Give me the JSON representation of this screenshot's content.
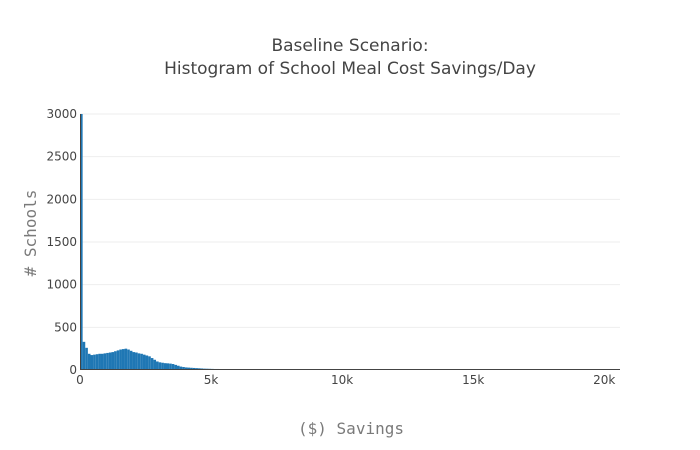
{
  "chart_data": {
    "type": "bar",
    "title_line1": "Baseline Scenario:",
    "title_line2": "Histogram of School Meal Cost Savings/Day",
    "xlabel": "($) Savings",
    "ylabel": "# Schools",
    "xlim": [
      0,
      20600
    ],
    "ylim": [
      0,
      3000
    ],
    "x_ticks": [
      {
        "value": 0,
        "label": "0"
      },
      {
        "value": 5000,
        "label": "5k"
      },
      {
        "value": 10000,
        "label": "10k"
      },
      {
        "value": 15000,
        "label": "15k"
      },
      {
        "value": 20000,
        "label": "20k"
      }
    ],
    "y_ticks": [
      {
        "value": 0,
        "label": "0"
      },
      {
        "value": 500,
        "label": "500"
      },
      {
        "value": 1000,
        "label": "1000"
      },
      {
        "value": 1500,
        "label": "1500"
      },
      {
        "value": 2000,
        "label": "2000"
      },
      {
        "value": 2500,
        "label": "2500"
      },
      {
        "value": 3000,
        "label": "3000"
      }
    ],
    "grid": true,
    "bar_color": "#1f77b4",
    "bin_width": 100,
    "bin_starts": [
      0,
      100,
      200,
      300,
      400,
      500,
      600,
      700,
      800,
      900,
      1000,
      1100,
      1200,
      1300,
      1400,
      1500,
      1600,
      1700,
      1800,
      1900,
      2000,
      2100,
      2200,
      2300,
      2400,
      2500,
      2600,
      2700,
      2800,
      2900,
      3000,
      3100,
      3200,
      3300,
      3400,
      3500,
      3600,
      3700,
      3800,
      3900,
      4000,
      4100,
      4200,
      4300,
      4400,
      4500,
      4600,
      4700,
      4800,
      4900,
      5000,
      5100,
      5200,
      5300,
      5400,
      5500,
      5600,
      5700,
      5800,
      5900,
      6000,
      6100,
      6200,
      6300,
      6400,
      6500,
      6600,
      6700,
      6800,
      6900,
      7000,
      7100,
      7200,
      7300,
      7400,
      7500,
      7600,
      7700,
      7800,
      7900,
      8000,
      8100,
      8200,
      8300,
      8400,
      8500,
      8600,
      8700,
      8800,
      8900,
      9000,
      9100,
      9200,
      9300,
      9400,
      9500
    ],
    "values": [
      3000,
      330,
      260,
      190,
      175,
      180,
      185,
      190,
      190,
      195,
      200,
      205,
      210,
      220,
      230,
      240,
      245,
      250,
      240,
      225,
      210,
      205,
      195,
      190,
      180,
      170,
      160,
      140,
      120,
      100,
      90,
      85,
      80,
      78,
      75,
      70,
      60,
      50,
      40,
      35,
      30,
      28,
      26,
      24,
      22,
      20,
      18,
      16,
      15,
      14,
      13,
      12,
      12,
      11,
      11,
      10,
      10,
      9,
      9,
      8,
      8,
      8,
      7,
      7,
      7,
      6,
      6,
      6,
      6,
      5,
      5,
      5,
      5,
      5,
      5,
      4,
      4,
      4,
      4,
      4,
      3,
      3,
      3,
      3,
      3,
      3,
      3,
      2,
      2,
      2,
      2,
      2,
      2,
      1,
      1,
      1
    ]
  }
}
